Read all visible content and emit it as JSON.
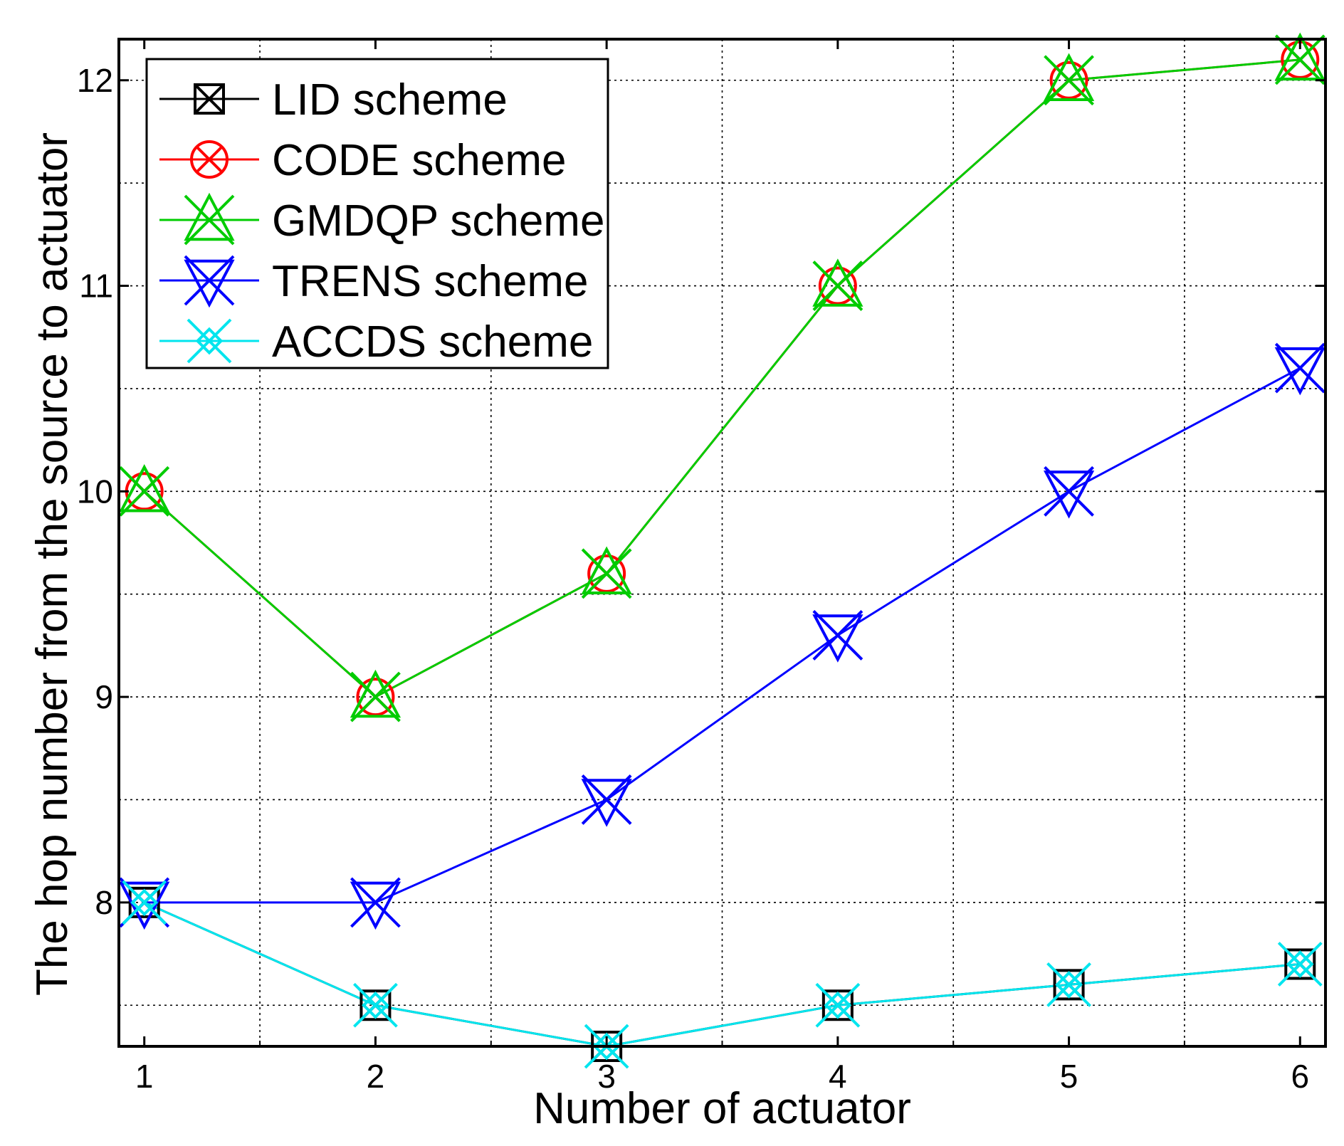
{
  "chart_data": {
    "type": "line",
    "xlabel": "Number of actuator",
    "ylabel": "The hop number from the source to actuator",
    "x": [
      1,
      2,
      3,
      4,
      5,
      6
    ],
    "xticks": [
      "1",
      "2",
      "3",
      "4",
      "5",
      "6"
    ],
    "yticks": [
      "8",
      "9",
      "10",
      "11",
      "12"
    ],
    "xlim": [
      0.89,
      6.11
    ],
    "ylim": [
      7.3,
      12.2
    ],
    "grid": true,
    "legend": "top-left",
    "series": [
      {
        "name": "LID scheme",
        "color": "#000000",
        "marker": "square-x",
        "values": [
          8.0,
          7.5,
          7.3,
          7.5,
          7.6,
          7.7
        ]
      },
      {
        "name": "CODE scheme",
        "color": "#ff0000",
        "marker": "circle-x",
        "values": [
          10.0,
          9.0,
          9.6,
          11.0,
          12.0,
          12.1
        ]
      },
      {
        "name": "GMDQP scheme",
        "color": "#00cc00",
        "marker": "triangle-up",
        "values": [
          10.0,
          9.0,
          9.6,
          11.0,
          12.0,
          12.1
        ]
      },
      {
        "name": "TRENS scheme",
        "color": "#0000ff",
        "marker": "triangle-down",
        "values": [
          8.0,
          8.0,
          8.5,
          9.3,
          10.0,
          10.6
        ]
      },
      {
        "name": "ACCDS scheme",
        "color": "#00e5ee",
        "marker": "x-diamond",
        "values": [
          8.0,
          7.5,
          7.3,
          7.5,
          7.6,
          7.7
        ]
      }
    ]
  }
}
